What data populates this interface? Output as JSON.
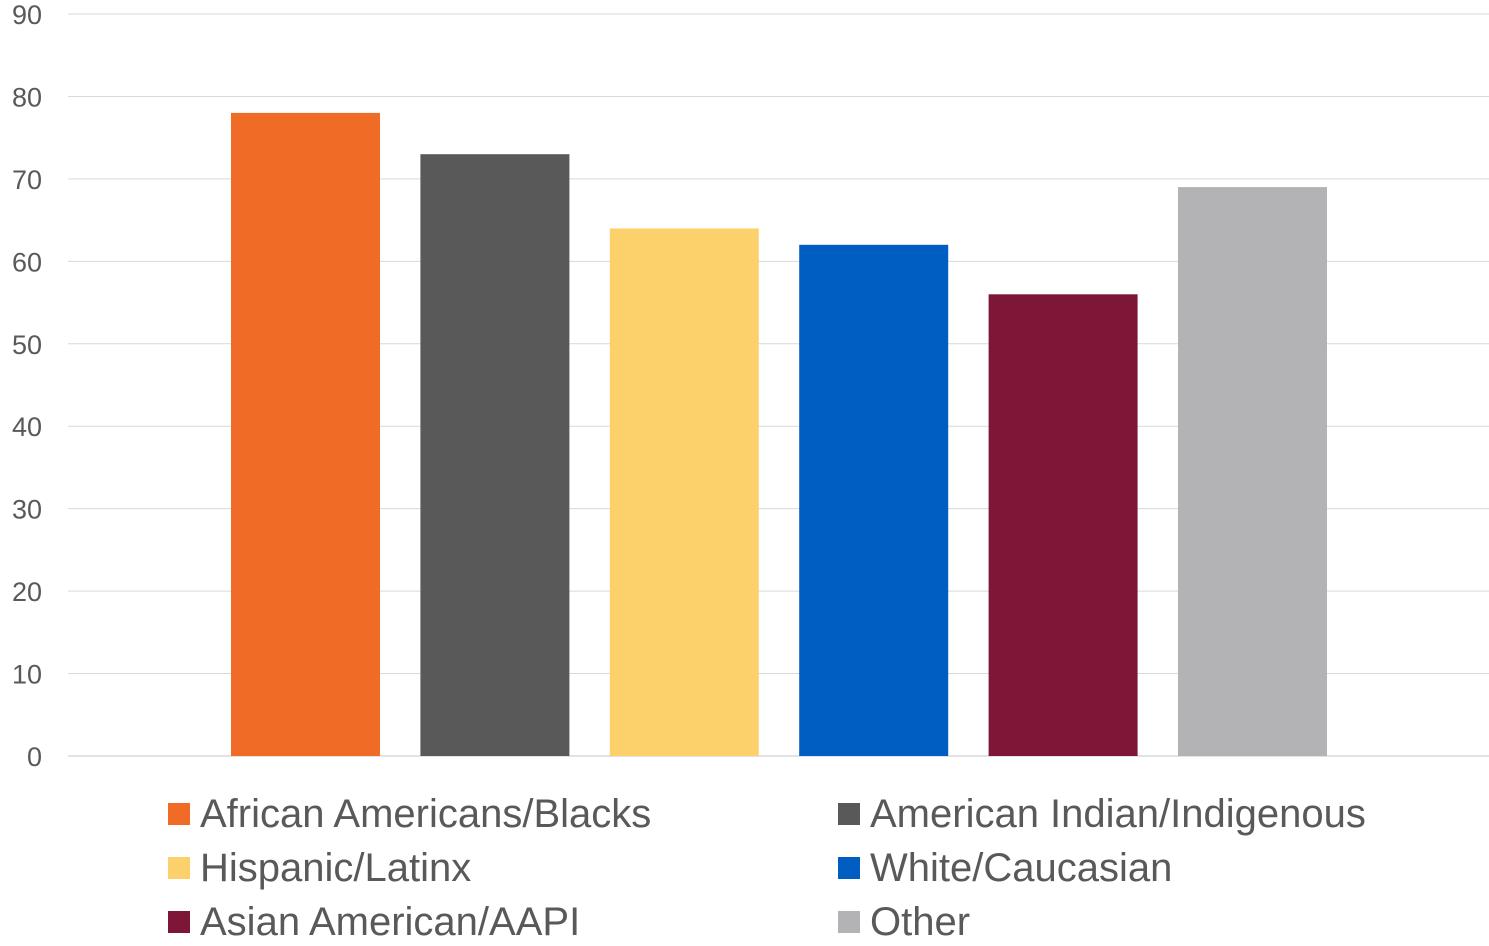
{
  "chart_data": {
    "type": "bar",
    "title": "",
    "xlabel": "",
    "ylabel": "",
    "ylim": [
      0,
      90
    ],
    "yticks": [
      0,
      10,
      20,
      30,
      40,
      50,
      60,
      70,
      80,
      90
    ],
    "grid": true,
    "legend_position": "bottom",
    "series": [
      {
        "name": "African Americans/Blacks",
        "value": 78,
        "color": "#F06B25"
      },
      {
        "name": "American Indian/Indigenous",
        "value": 73,
        "color": "#595959"
      },
      {
        "name": "Hispanic/Latinx",
        "value": 64,
        "color": "#FCD16B"
      },
      {
        "name": "White/Caucasian",
        "value": 62,
        "color": "#005EC2"
      },
      {
        "name": "Asian American/AAPI",
        "value": 56,
        "color": "#7E1737"
      },
      {
        "name": "Other",
        "value": 69,
        "color": "#B3B2B4"
      }
    ]
  }
}
